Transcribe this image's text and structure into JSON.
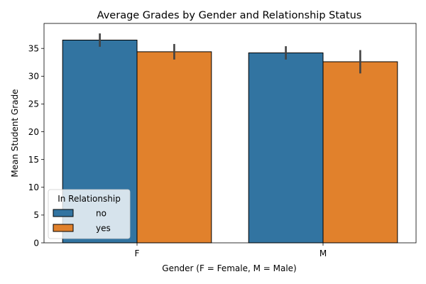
{
  "chart_data": {
    "type": "bar",
    "title": "Average Grades by Gender and Relationship Status",
    "xlabel": "Gender (F = Female, M = Male)",
    "ylabel": "Mean Student Grade",
    "categories": [
      "F",
      "M"
    ],
    "ylim": [
      0,
      39.5
    ],
    "yticks": [
      0,
      5,
      10,
      15,
      20,
      25,
      30,
      35
    ],
    "grid": false,
    "legend": {
      "title": "In Relationship",
      "placement": "lower-left"
    },
    "series": [
      {
        "name": "no",
        "color": "#3274a1",
        "values": [
          36.5,
          34.2
        ],
        "ci_low": [
          35.3,
          33.0
        ],
        "ci_high": [
          37.7,
          35.4
        ]
      },
      {
        "name": "yes",
        "color": "#e1812c",
        "values": [
          34.4,
          32.6
        ],
        "ci_low": [
          33.0,
          30.5
        ],
        "ci_high": [
          35.8,
          34.7
        ]
      }
    ]
  }
}
